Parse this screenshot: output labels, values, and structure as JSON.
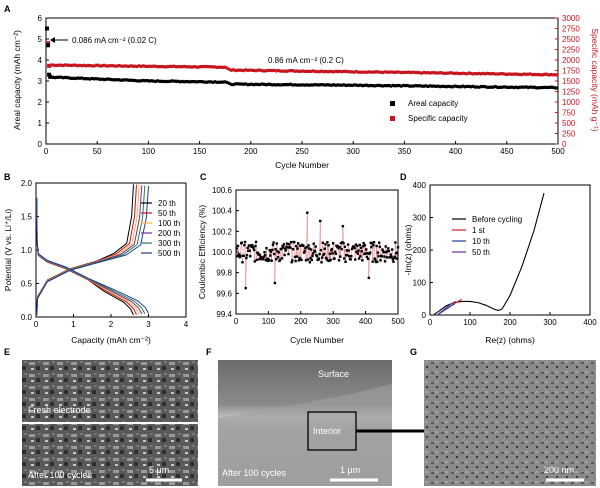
{
  "colors": {
    "areal": "#000000",
    "specific": "#c8141e",
    "cycles": [
      "#000000",
      "#c8141e",
      "#ffb040",
      "#7030a0",
      "#208040",
      "#1f3d99"
    ],
    "eis": [
      "#000000",
      "#d02020",
      "#1f3d99",
      "#7030a0"
    ]
  },
  "panels": {
    "A": {
      "letter": "A"
    },
    "B": {
      "letter": "B"
    },
    "C": {
      "letter": "C"
    },
    "D": {
      "letter": "D"
    },
    "E": {
      "letter": "E",
      "label_top": "Fresh electrode",
      "label_bottom": "After 100 cycles",
      "scale": "5 μm"
    },
    "F": {
      "letter": "F",
      "label_surface": "Surface",
      "label_interior": "Interior",
      "label_after": "After 100 cycles",
      "scale": "1 μm"
    },
    "G": {
      "letter": "G",
      "scale": "200 nm"
    }
  },
  "chart_data": [
    {
      "id": "A",
      "type": "scatter",
      "xlabel": "Cycle Number",
      "ylabel": "Areal capacity (mAh cm⁻²)",
      "y2label": "Specific capacity (mAh g⁻¹)",
      "xlim": [
        0,
        500
      ],
      "ylim": [
        0,
        6
      ],
      "y2lim": [
        0,
        3000
      ],
      "xticks": [
        "0",
        "50",
        "100",
        "150",
        "200",
        "250",
        "300",
        "350",
        "400",
        "450",
        "500"
      ],
      "yticks": [
        "0",
        "1",
        "2",
        "3",
        "4",
        "5",
        "6"
      ],
      "y2ticks": [
        "0",
        "250",
        "500",
        "750",
        "1000",
        "1250",
        "1500",
        "1750",
        "2000",
        "2250",
        "2500",
        "2750",
        "3000"
      ],
      "annotations": [
        "0.086 mA cm⁻² (0.02 C)",
        "0.86 mA cm⁻² (0.2 C)"
      ],
      "legend": [
        "Areal capacity",
        "Specific capacity"
      ],
      "series": [
        {
          "name": "Areal capacity",
          "axis": "left",
          "initial": [
            [
              1,
              5.5
            ],
            [
              2,
              4.7
            ],
            [
              3,
              3.3
            ],
            [
              4,
              3.2
            ]
          ],
          "segments": [
            [
              5,
              3.18
            ],
            [
              100,
              3.0
            ],
            [
              175,
              2.95
            ],
            [
              180,
              2.85
            ],
            [
              300,
              2.8
            ],
            [
              500,
              2.68
            ]
          ]
        },
        {
          "name": "Specific capacity",
          "axis": "right",
          "initial": [
            [
              1,
              2750
            ],
            [
              2,
              2400
            ],
            [
              3,
              1860
            ]
          ],
          "segments": [
            [
              5,
              1880
            ],
            [
              100,
              1850
            ],
            [
              175,
              1830
            ],
            [
              180,
              1760
            ],
            [
              300,
              1720
            ],
            [
              500,
              1650
            ]
          ]
        }
      ]
    },
    {
      "id": "B",
      "type": "line",
      "xlabel": "Capacity (mAh cm⁻²)",
      "ylabel": "Potential (V vs. Li⁺/Li)",
      "xlim": [
        0,
        4
      ],
      "ylim": [
        0,
        2
      ],
      "xticks": [
        "0",
        "1",
        "2",
        "3",
        "4"
      ],
      "yticks": [
        "0.0",
        "0.5",
        "1.0",
        "1.5",
        "2.0"
      ],
      "legend": [
        "20 th",
        "50 th",
        "100 th",
        "200 th",
        "300 th",
        "500 th"
      ],
      "end_capacity": [
        2.6,
        2.68,
        2.75,
        2.82,
        2.9,
        3.0
      ]
    },
    {
      "id": "C",
      "type": "scatter",
      "xlabel": "Cycle Number",
      "ylabel": "Coulombic Efficiency (%)",
      "xlim": [
        0,
        500
      ],
      "ylim": [
        99.4,
        100.6
      ],
      "xticks": [
        "0",
        "100",
        "200",
        "300",
        "400",
        "500"
      ],
      "yticks": [
        "99.4",
        "99.6",
        "99.8",
        "100.0",
        "100.2",
        "100.4",
        "100.6"
      ],
      "mean": 100.0,
      "spread": 0.1,
      "outliers": [
        [
          30,
          99.65
        ],
        [
          175,
          99.52
        ],
        [
          220,
          100.38
        ],
        [
          260,
          100.3
        ],
        [
          120,
          99.7
        ],
        [
          330,
          100.25
        ],
        [
          410,
          99.75
        ]
      ]
    },
    {
      "id": "D",
      "type": "line",
      "xlabel": "Re(z) (ohms)",
      "ylabel": "-Im(z) (ohms)",
      "xlim": [
        0,
        400
      ],
      "ylim": [
        0,
        400
      ],
      "xticks": [
        "0",
        "100",
        "200",
        "300",
        "400"
      ],
      "yticks": [
        "0",
        "100",
        "200",
        "300",
        "400"
      ],
      "legend": [
        "Before cycling",
        "1 st",
        "10 th",
        "50 th"
      ],
      "series": [
        {
          "name": "Before cycling",
          "points": [
            [
              10,
              2
            ],
            [
              20,
              10
            ],
            [
              40,
              28
            ],
            [
              60,
              38
            ],
            [
              80,
              42
            ],
            [
              100,
              42
            ],
            [
              120,
              38
            ],
            [
              140,
              30
            ],
            [
              160,
              18
            ],
            [
              170,
              14
            ],
            [
              180,
              18
            ],
            [
              200,
              60
            ],
            [
              230,
              150
            ],
            [
              260,
              260
            ],
            [
              285,
              375
            ]
          ]
        },
        {
          "name": "1 st",
          "points": [
            [
              20,
              2
            ],
            [
              30,
              10
            ],
            [
              45,
              22
            ],
            [
              55,
              30
            ],
            [
              65,
              38
            ],
            [
              75,
              45
            ],
            [
              80,
              48
            ]
          ]
        },
        {
          "name": "10 th",
          "points": [
            [
              20,
              2
            ],
            [
              28,
              8
            ],
            [
              40,
              18
            ],
            [
              50,
              26
            ],
            [
              58,
              32
            ],
            [
              62,
              34
            ]
          ]
        },
        {
          "name": "50 th",
          "points": [
            [
              20,
              2
            ],
            [
              30,
              12
            ],
            [
              42,
              24
            ],
            [
              55,
              36
            ],
            [
              65,
              42
            ]
          ]
        }
      ]
    }
  ]
}
